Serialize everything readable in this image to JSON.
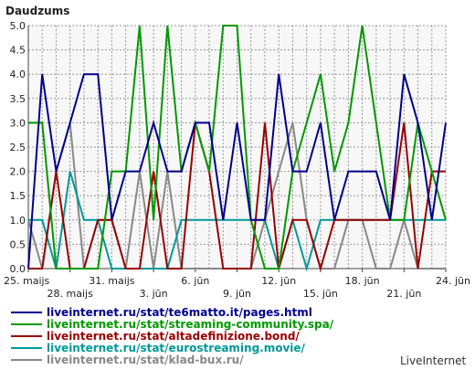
{
  "chart_data": {
    "type": "line",
    "title": "Daudzums",
    "ylim": [
      0,
      5
    ],
    "y_ticks": [
      "0.0",
      "0.5",
      "1.0",
      "1.5",
      "2.0",
      "2.5",
      "3.0",
      "3.5",
      "4.0",
      "4.5",
      "5.0"
    ],
    "x_ticks_row1": [
      "25. maijs",
      "31. maijs",
      "6. jūn",
      "12. jūn",
      "18. jūn",
      "24. jūn"
    ],
    "x_ticks_row2": [
      "28. maijs",
      "3. jūn",
      "9. jūn",
      "15. jūn",
      "21. jūn"
    ],
    "x": [
      "25. maijs",
      "26. maijs",
      "27. maijs",
      "28. maijs",
      "29. maijs",
      "30. maijs",
      "31. maijs",
      "1. jūn",
      "2. jūn",
      "3. jūn",
      "4. jūn",
      "5. jūn",
      "6. jūn",
      "7. jūn",
      "8. jūn",
      "9. jūn",
      "10. jūn",
      "11. jūn",
      "12. jūn",
      "13. jūn",
      "14. jūn",
      "15. jūn",
      "16. jūn",
      "17. jūn",
      "18. jūn",
      "19. jūn",
      "20. jūn",
      "21. jūn",
      "22. jūn",
      "23. jūn",
      "24. jūn"
    ],
    "grid": true,
    "legend_position": "bottom",
    "series": [
      {
        "name": "liveinternet.ru/stat/te6matto.it/pages.html",
        "color": "#00008b",
        "values": [
          0,
          4,
          2,
          3,
          4,
          4,
          1,
          2,
          2,
          3,
          2,
          2,
          3,
          3,
          1,
          3,
          1,
          1,
          4,
          2,
          2,
          3,
          1,
          2,
          2,
          2,
          1,
          4,
          3,
          1,
          3
        ]
      },
      {
        "name": "liveinternet.ru/stat/streaming-community.spa/",
        "color": "#009900",
        "values": [
          3,
          3,
          0,
          0,
          0,
          0,
          2,
          2,
          5,
          1,
          5,
          2,
          3,
          2,
          5,
          5,
          1,
          0,
          0,
          2,
          3,
          4,
          2,
          3,
          5,
          3,
          1,
          1,
          3,
          2,
          1
        ]
      },
      {
        "name": "liveinternet.ru/stat/altadefinizione.bond/",
        "color": "#990000",
        "values": [
          0,
          0,
          2,
          0,
          0,
          1,
          1,
          0,
          0,
          2,
          0,
          0,
          3,
          2,
          0,
          0,
          0,
          3,
          0,
          1,
          1,
          0,
          1,
          1,
          1,
          1,
          1,
          3,
          0,
          2,
          2
        ]
      },
      {
        "name": "liveinternet.ru/stat/eurostreaming.movie/",
        "color": "#009999",
        "values": [
          1,
          1,
          0,
          2,
          1,
          1,
          0,
          0,
          0,
          0,
          0,
          1,
          1,
          1,
          1,
          1,
          1,
          1,
          0,
          1,
          0,
          1,
          1,
          1,
          1,
          1,
          1,
          1,
          1,
          1,
          1
        ]
      },
      {
        "name": "liveinternet.ru/stat/klad-bux.ru/",
        "color": "#888888",
        "values": [
          1,
          0,
          2,
          3,
          0,
          1,
          1,
          0,
          2,
          0,
          2,
          0,
          0,
          0,
          0,
          0,
          0,
          1,
          2,
          3,
          1,
          0,
          0,
          1,
          1,
          0,
          0,
          1,
          0,
          0,
          0
        ]
      }
    ]
  },
  "credit": "LiveInternet"
}
